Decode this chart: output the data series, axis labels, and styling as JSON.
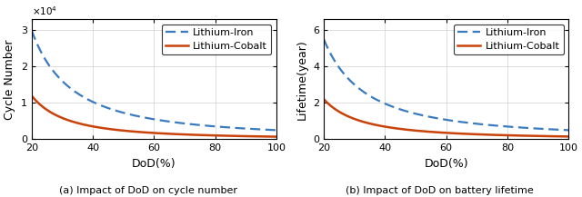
{
  "dod_min": 20,
  "dod_max": 100,
  "dod_points": 300,
  "iron_color": "#3a7bbf",
  "cobalt_color": "#c8420a",
  "iron_label": "Lithium-Iron",
  "cobalt_label": "Lithium-Cobalt",
  "left_ylabel": "Cycle Number",
  "right_ylabel": "Lifetime(year)",
  "xlabel": "DoD(%)",
  "left_caption": "(a) Impact of DoD on cycle number",
  "right_caption": "(b) Impact of DoD on battery lifetime",
  "left_yticks": [
    0,
    10000,
    20000,
    30000
  ],
  "left_ylim": [
    0,
    33000
  ],
  "right_yticks": [
    0,
    2,
    4,
    6
  ],
  "right_ylim": [
    0,
    6.6
  ],
  "xticks": [
    20,
    40,
    60,
    80,
    100
  ],
  "xlim": [
    20,
    100
  ],
  "iron_cycle_at20": 30000,
  "iron_cycle_at100": 2500,
  "cobalt_cycle_at20": 12000,
  "cobalt_cycle_at100": 700,
  "iron_life_at20": 5.5,
  "iron_life_at100": 0.5,
  "cobalt_life_at20": 2.2,
  "cobalt_life_at100": 0.15,
  "legend_fontsize": 8,
  "axis_label_fontsize": 9,
  "tick_fontsize": 8,
  "caption_fontsize": 8
}
